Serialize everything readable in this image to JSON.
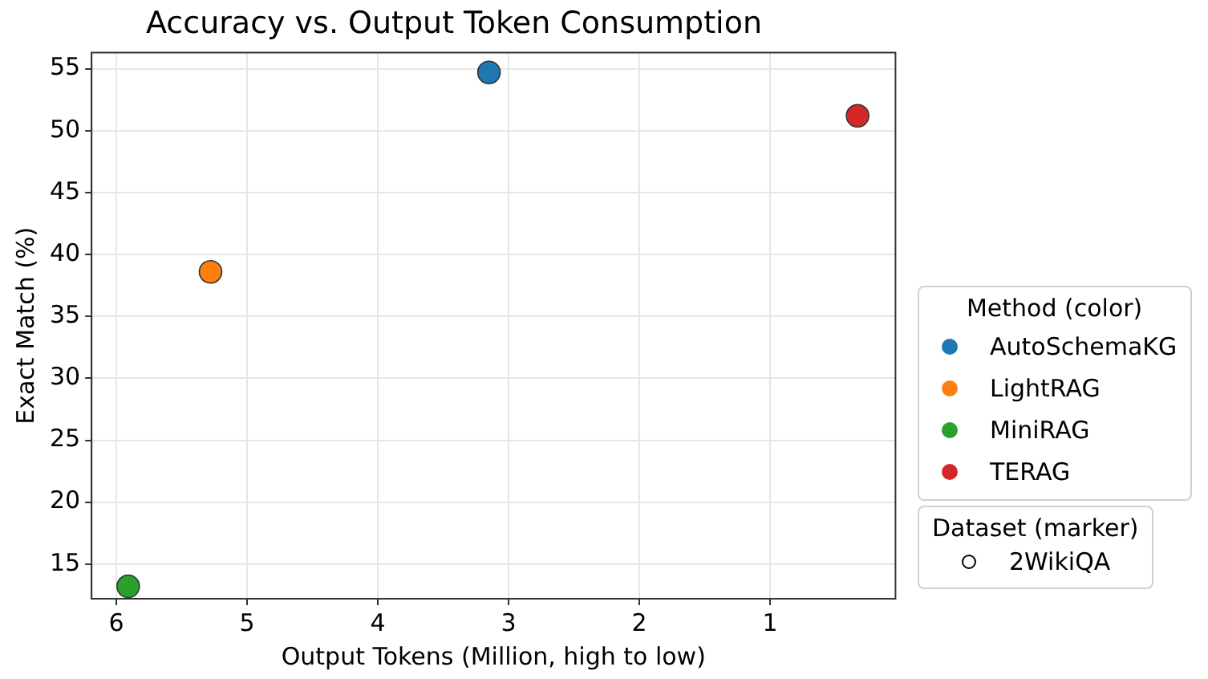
{
  "chart_data": {
    "type": "scatter",
    "title": "Accuracy vs. Output Token Consumption",
    "xlabel": "Output Tokens (Million, high to low)",
    "ylabel": "Exact Match (%)",
    "legend_title": "Method (color)",
    "legend": "right",
    "marker": "circle",
    "grid": true,
    "xlim": [
      6.19,
      0.04
    ],
    "xticks": [
      6,
      5,
      4,
      3,
      2,
      1
    ],
    "ylim": [
      12.2,
      56.3
    ],
    "yticks": [
      15,
      20,
      25,
      30,
      35,
      40,
      45,
      50,
      55
    ],
    "series": [
      {
        "name": "AutoSchemaKG",
        "color": "#1f77b4",
        "x": [
          3.15
        ],
        "values": [
          54.7
        ]
      },
      {
        "name": "LightRAG",
        "color": "#ff7f0e",
        "x": [
          5.28
        ],
        "values": [
          38.6
        ]
      },
      {
        "name": "MiniRAG",
        "color": "#2ca02c",
        "x": [
          5.91
        ],
        "values": [
          13.2
        ]
      },
      {
        "name": "TERAG",
        "color": "#d62728",
        "x": [
          0.33
        ],
        "values": [
          51.2
        ]
      }
    ],
    "annotations": [
      "Dataset (marker)",
      "2WikiQA"
    ]
  }
}
